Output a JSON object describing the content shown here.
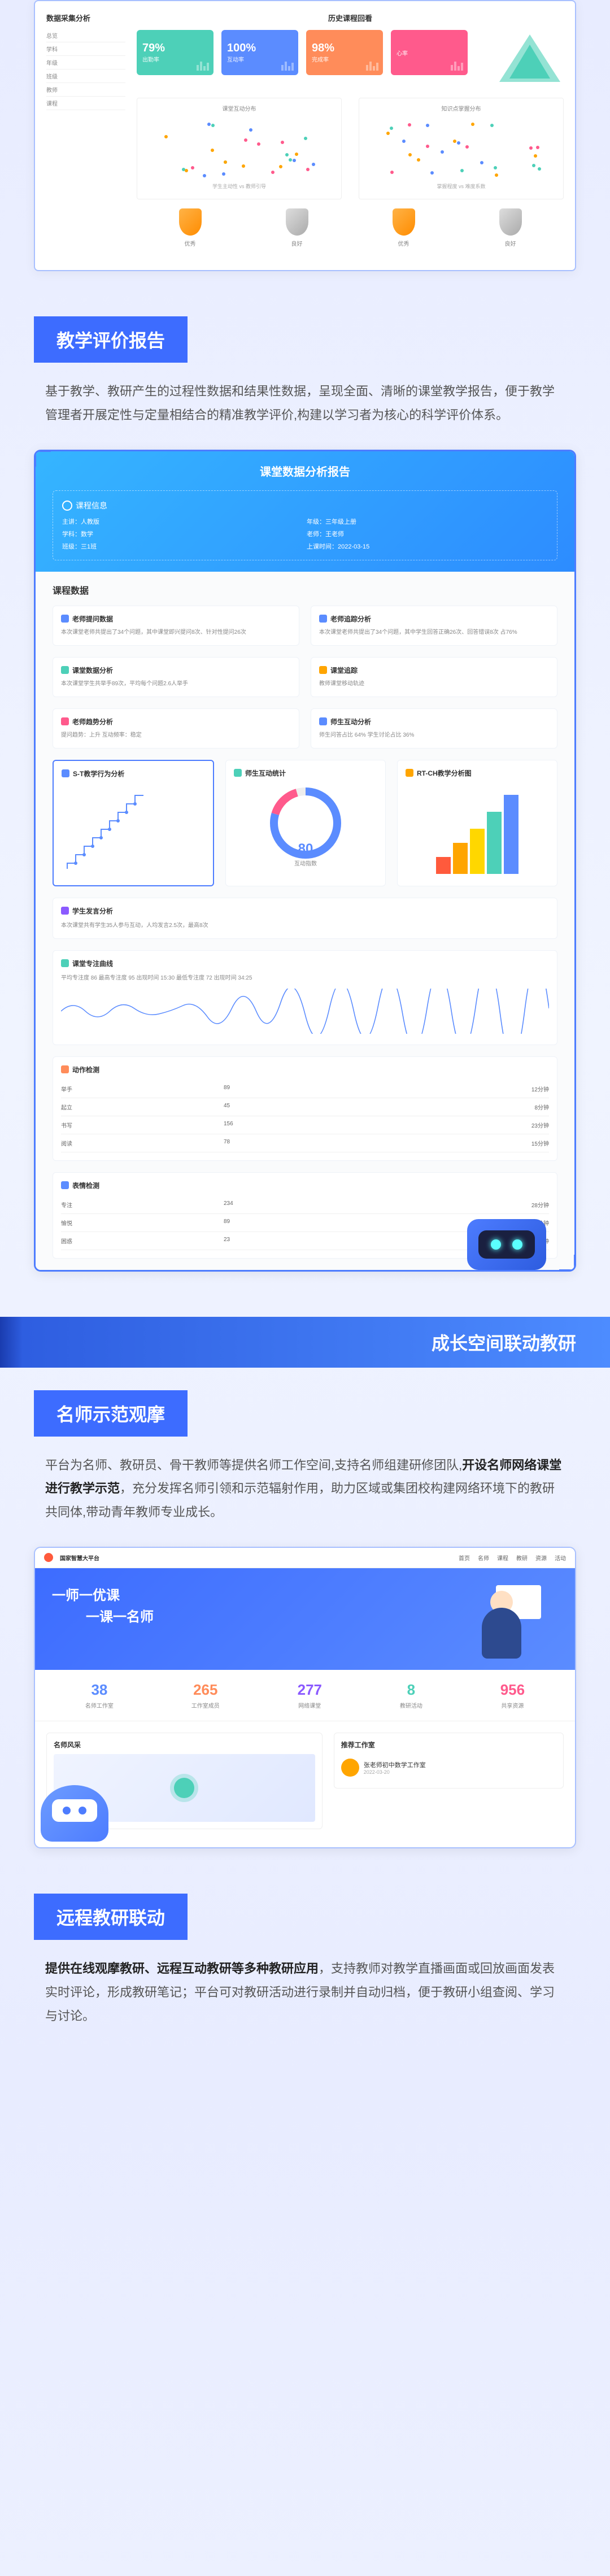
{
  "dashboard": {
    "left_title": "数据采集分析",
    "left_items": [
      "总览",
      "学科",
      "年级",
      "班级",
      "教师",
      "课程"
    ],
    "right_title": "历史课程回看",
    "stat_cards": [
      {
        "val": "79%",
        "lab": "出勤率",
        "color": "#4dd0b8"
      },
      {
        "val": "100%",
        "lab": "互动率",
        "color": "#5b8cff"
      },
      {
        "val": "98%",
        "lab": "完成率",
        "color": "#ff8c5a"
      },
      {
        "val": "",
        "lab": "心率",
        "color": "#ff5a8c"
      }
    ],
    "scatter_colors": [
      "#ffa500",
      "#4dd0b8",
      "#5b8cff",
      "#ff5a8c"
    ],
    "medals": [
      {
        "type": "gold",
        "label": "优秀"
      },
      {
        "type": "silver",
        "label": "良好"
      },
      {
        "type": "gold",
        "label": "优秀"
      },
      {
        "type": "silver",
        "label": "良好"
      }
    ]
  },
  "section1": {
    "header": "教学评价报告",
    "desc_plain": "基于教学、教研产生的过程性数据和结果性数据，呈现全面、清晰的课堂教学报告，便于教学管理者开展定性与定量相结合的精准教学评价,构建以学习者为核心的科学评价体系。"
  },
  "report": {
    "title": "课堂数据分析报告",
    "info_title": "课程信息",
    "info_items": [
      "主讲：人教版",
      "年级：三年级上册",
      "学科：数学",
      "老师：王老师",
      "班级：三1班",
      "上课时间：2022-03-15"
    ],
    "body_title": "课程数据",
    "metrics": [
      {
        "icon_color": "#5b8cff",
        "title": "老师提问数据",
        "body": "本次课堂老师共提出了34个问题，其中课堂即兴提问8次、针对性提问26次"
      },
      {
        "icon_color": "#5b8cff",
        "title": "老师追踪分析",
        "body": "本次课堂老师共提出了34个问题，其中学生回答正确26次、回答错误8次 占76%"
      },
      {
        "icon_color": "#4dd0b8",
        "title": "课堂数据分析",
        "body": "本次课堂学生共举手89次，平均每个问题2.6人举手"
      },
      {
        "icon_color": "#ffa500",
        "title": "课堂追踪",
        "body": "教师课堂移动轨迹"
      },
      {
        "icon_color": "#ff5a8c",
        "title": "老师趋势分析",
        "body": "提问趋势：上升  互动频率：稳定"
      },
      {
        "icon_color": "#5b8cff",
        "title": "师生互动分析",
        "body": "师生问答占比 64%  学生讨论占比 36%"
      }
    ],
    "charts": [
      {
        "title": "S-T教学行为分析",
        "type": "step"
      },
      {
        "title": "师生互动统计",
        "type": "gauge",
        "val": "80",
        "sub": "互动指数"
      },
      {
        "title": "RT-CH教学分析图",
        "type": "pyramid"
      }
    ],
    "pyramid_colors": [
      "#ff5a3c",
      "#ffa500",
      "#ffd700",
      "#4dd0b8",
      "#5b8cff"
    ],
    "student_section": "学生发言分析",
    "student_desc": "本次课堂共有学生35人参与互动，人均发言2.5次，最高8次",
    "wave_title": "课堂专注曲线",
    "wave_stats": "平均专注度 86  最高专注度 95  出现时间 15:30  最低专注度 72  出现时间 34:25",
    "action_title": "动作检测",
    "action_rows": [
      {
        "name": "举手",
        "count": "89",
        "time": "12分钟"
      },
      {
        "name": "起立",
        "count": "45",
        "time": "8分钟"
      },
      {
        "name": "书写",
        "count": "156",
        "time": "23分钟"
      },
      {
        "name": "阅读",
        "count": "78",
        "time": "15分钟"
      }
    ],
    "emotion_title": "表情检测",
    "emotion_rows": [
      {
        "name": "专注",
        "count": "234",
        "time": "28分钟"
      },
      {
        "name": "愉悦",
        "count": "89",
        "time": "12分钟"
      },
      {
        "name": "困惑",
        "count": "23",
        "time": "4分钟"
      }
    ]
  },
  "banner": "成长空间联动教研",
  "section2": {
    "header": "名师示范观摩",
    "desc_pre": "平台为名师、教研员、骨干教师等提供名师工作空间,支持名师组建研修团队,",
    "desc_bold": "开设名师网络课堂进行教学示范",
    "desc_post": "，充分发挥名师引领和示范辐射作用，助力区域或集团校构建网络环境下的教研共同体,带动青年教师专业成长。"
  },
  "platform": {
    "brand": "国家智慧大平台",
    "nav": [
      "首页",
      "名师",
      "课程",
      "教研",
      "资源",
      "活动"
    ],
    "hero_line1": "一师一优课",
    "hero_line2": "一课一名师",
    "stats": [
      {
        "val": "38",
        "lab": "名师工作室",
        "color": "#5b8cff"
      },
      {
        "val": "265",
        "lab": "工作室成员",
        "color": "#ff8c5a"
      },
      {
        "val": "277",
        "lab": "网络课堂",
        "color": "#8b5aff"
      },
      {
        "val": "8",
        "lab": "教研活动",
        "color": "#4dd0b8"
      },
      {
        "val": "956",
        "lab": "共享资源",
        "color": "#ff5a8c"
      }
    ],
    "left_title": "名师风采",
    "right_title": "推荐工作室",
    "workshop": "张老师初中数学工作室",
    "workshop_date": "2022-03-20"
  },
  "section3": {
    "header": "远程教研联动",
    "desc_bold": "提供在线观摩教研、远程互动教研等多种教研应用",
    "desc_post": "，支持教师对教学直播画面或回放画面发表实时评论，形成教研笔记；平台可对教研活动进行录制并自动归档，便于教研小组查阅、学习与讨论。"
  }
}
